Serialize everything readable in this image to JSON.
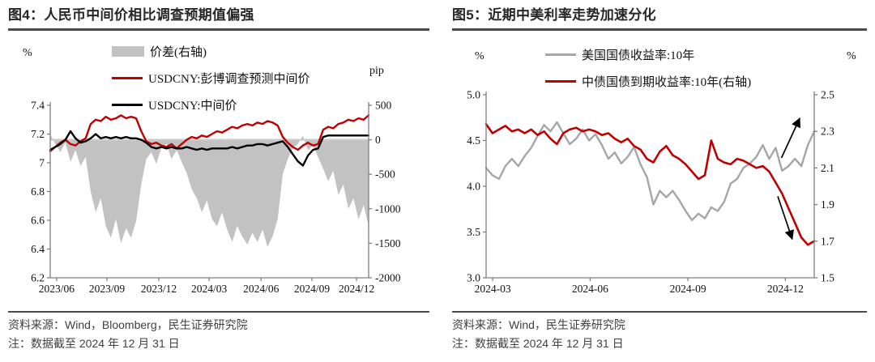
{
  "figures": [
    {
      "title": "图4：人民币中间价相比调查预期值偏强",
      "source": "资料来源：Wind，Bloomberg，民生证券研究院",
      "note": "注：数据截至 2024 年 12 月 31 日"
    },
    {
      "title": "图5：近期中美利率走势加速分化",
      "source": "资料来源：Wind，民生证券研究院",
      "note": "注：数据截至 2024 年 12 月 31 日"
    }
  ],
  "chart_data": [
    {
      "type": "line+area",
      "title": "人民币中间价相比调查预期值偏强",
      "legend_position": "top-center",
      "grid": false,
      "baseline_right": 0,
      "y_left": {
        "unit": "%",
        "min": 6.2,
        "max": 7.4,
        "ticks": [
          {
            "v": 7.4,
            "label": "7.4"
          },
          {
            "v": 7.2,
            "label": "7.2"
          },
          {
            "v": 7.0,
            "label": "7"
          },
          {
            "v": 6.8,
            "label": "6.8"
          },
          {
            "v": 6.6,
            "label": "6.6"
          },
          {
            "v": 6.4,
            "label": "6.4"
          },
          {
            "v": 6.2,
            "label": "6.2"
          }
        ]
      },
      "y_right": {
        "unit": "pip",
        "min": -2000,
        "max": 500,
        "ticks": [
          {
            "v": 500,
            "label": "500"
          },
          {
            "v": 0,
            "label": "0"
          },
          {
            "v": -500,
            "label": "-500"
          },
          {
            "v": -1000,
            "label": "-1000"
          },
          {
            "v": -1500,
            "label": "-1500"
          },
          {
            "v": -2000,
            "label": "-2000"
          }
        ]
      },
      "x_ticks": [
        {
          "f": 0.02,
          "label": "2023/06"
        },
        {
          "f": 0.178,
          "label": "2023/09"
        },
        {
          "f": 0.341,
          "label": "2023/12"
        },
        {
          "f": 0.499,
          "label": "2024/03"
        },
        {
          "f": 0.662,
          "label": "2024/06"
        },
        {
          "f": 0.822,
          "label": "2024/09"
        },
        {
          "f": 0.962,
          "label": "2024/12"
        }
      ],
      "series": [
        {
          "name": "价差(右轴)",
          "type": "area",
          "axis": "right",
          "color": "#c2c2c2",
          "baseline": 0,
          "values": [
            80,
            -60,
            -180,
            -40,
            -320,
            -150,
            -380,
            -250,
            -750,
            -1050,
            -850,
            -1250,
            -1420,
            -1150,
            -1500,
            -1280,
            -1420,
            -1180,
            -650,
            -280,
            -180,
            -350,
            -120,
            -60,
            -280,
            -150,
            -320,
            -480,
            -720,
            -850,
            -1050,
            -880,
            -1150,
            -1250,
            -1050,
            -1300,
            -1480,
            -1250,
            -1400,
            -1520,
            -1350,
            -1480,
            -1300,
            -1550,
            -1400,
            -1150,
            -500,
            -280,
            -120,
            -60,
            60,
            -150,
            -80,
            -250,
            -420,
            -600,
            -450,
            -800,
            -650,
            -1000,
            -850,
            -1150,
            -950,
            -1250
          ]
        },
        {
          "name": "USDCNY:彭博调查预测中间价",
          "type": "line",
          "axis": "left",
          "color": "#c00000",
          "width": 2.4,
          "values": [
            7.08,
            7.11,
            7.14,
            7.16,
            7.13,
            7.12,
            7.15,
            7.17,
            7.27,
            7.3,
            7.29,
            7.32,
            7.3,
            7.31,
            7.33,
            7.31,
            7.32,
            7.31,
            7.22,
            7.15,
            7.13,
            7.14,
            7.12,
            7.11,
            7.13,
            7.1,
            7.13,
            7.16,
            7.18,
            7.17,
            7.19,
            7.18,
            7.2,
            7.22,
            7.21,
            7.23,
            7.25,
            7.24,
            7.26,
            7.27,
            7.26,
            7.28,
            7.27,
            7.29,
            7.28,
            7.26,
            7.18,
            7.14,
            7.11,
            7.09,
            7.12,
            7.14,
            7.12,
            7.13,
            7.23,
            7.25,
            7.24,
            7.27,
            7.28,
            7.3,
            7.29,
            7.31,
            7.3,
            7.33
          ]
        },
        {
          "name": "USDCNY:中间价",
          "type": "line",
          "axis": "left",
          "color": "#000000",
          "width": 2.4,
          "values": [
            7.09,
            7.11,
            7.13,
            7.16,
            7.22,
            7.17,
            7.14,
            7.15,
            7.17,
            7.2,
            7.17,
            7.18,
            7.17,
            7.18,
            7.17,
            7.18,
            7.17,
            7.17,
            7.16,
            7.14,
            7.11,
            7.1,
            7.11,
            7.1,
            7.11,
            7.1,
            7.1,
            7.11,
            7.1,
            7.09,
            7.1,
            7.09,
            7.1,
            7.1,
            7.1,
            7.1,
            7.11,
            7.1,
            7.11,
            7.12,
            7.12,
            7.13,
            7.13,
            7.12,
            7.13,
            7.14,
            7.15,
            7.11,
            7.06,
            7.01,
            6.98,
            7.05,
            7.09,
            7.1,
            7.18,
            7.19,
            7.19,
            7.19,
            7.19,
            7.19,
            7.19,
            7.19,
            7.19,
            7.19
          ]
        }
      ]
    },
    {
      "type": "line",
      "title": "近期中美利率走势加速分化",
      "legend_position": "top-center",
      "grid": false,
      "y_left": {
        "unit": "%",
        "min": 3.0,
        "max": 5.0,
        "ticks": [
          {
            "v": 5.0,
            "label": "5.0"
          },
          {
            "v": 4.5,
            "label": "4.5"
          },
          {
            "v": 4.0,
            "label": "4.0"
          },
          {
            "v": 3.5,
            "label": "3.5"
          },
          {
            "v": 3.0,
            "label": "3.0"
          }
        ]
      },
      "y_right": {
        "unit": "%",
        "min": 1.5,
        "max": 2.5,
        "ticks": [
          {
            "v": 2.5,
            "label": "2.5"
          },
          {
            "v": 2.3,
            "label": "2.3"
          },
          {
            "v": 2.1,
            "label": "2.1"
          },
          {
            "v": 1.9,
            "label": "1.9"
          },
          {
            "v": 1.7,
            "label": "1.7"
          },
          {
            "v": 1.5,
            "label": "1.5"
          }
        ]
      },
      "x_ticks": [
        {
          "f": 0.02,
          "label": "2024-03"
        },
        {
          "f": 0.317,
          "label": "2024-06"
        },
        {
          "f": 0.615,
          "label": "2024-09"
        },
        {
          "f": 0.912,
          "label": "2024-12"
        }
      ],
      "series": [
        {
          "name": "美国国债收益率:10年",
          "type": "line",
          "axis": "left",
          "color": "#a6a6a6",
          "width": 2.4,
          "values": [
            4.2,
            4.12,
            4.08,
            4.22,
            4.3,
            4.22,
            4.33,
            4.42,
            4.55,
            4.67,
            4.6,
            4.7,
            4.58,
            4.46,
            4.52,
            4.62,
            4.5,
            4.57,
            4.45,
            4.3,
            4.37,
            4.25,
            4.32,
            4.43,
            4.24,
            4.1,
            3.8,
            3.95,
            3.88,
            3.95,
            3.85,
            3.73,
            3.63,
            3.7,
            3.65,
            3.77,
            3.73,
            3.83,
            4.03,
            4.08,
            4.2,
            4.25,
            4.32,
            4.45,
            4.3,
            4.42,
            4.17,
            4.22,
            4.3,
            4.22,
            4.45,
            4.6
          ]
        },
        {
          "name": "中债国债到期收益率:10年(右轴)",
          "type": "line",
          "axis": "right",
          "color": "#c00000",
          "width": 2.6,
          "values": [
            2.34,
            2.29,
            2.31,
            2.33,
            2.3,
            2.31,
            2.29,
            2.31,
            2.28,
            2.3,
            2.26,
            2.23,
            2.29,
            2.31,
            2.32,
            2.3,
            2.31,
            2.3,
            2.28,
            2.29,
            2.26,
            2.24,
            2.26,
            2.22,
            2.2,
            2.15,
            2.13,
            2.19,
            2.22,
            2.17,
            2.15,
            2.12,
            2.08,
            2.04,
            2.06,
            2.25,
            2.15,
            2.13,
            2.12,
            2.15,
            2.14,
            2.12,
            2.1,
            2.11,
            2.08,
            2.02,
            1.96,
            1.88,
            1.8,
            1.72,
            1.68,
            1.7
          ]
        }
      ],
      "arrows": [
        {
          "direction": "up",
          "from": [
            0.9,
            0.345
          ],
          "to": [
            0.956,
            0.128
          ]
        },
        {
          "direction": "down",
          "from": [
            0.889,
            0.555
          ],
          "to": [
            0.933,
            0.79
          ]
        }
      ]
    }
  ]
}
